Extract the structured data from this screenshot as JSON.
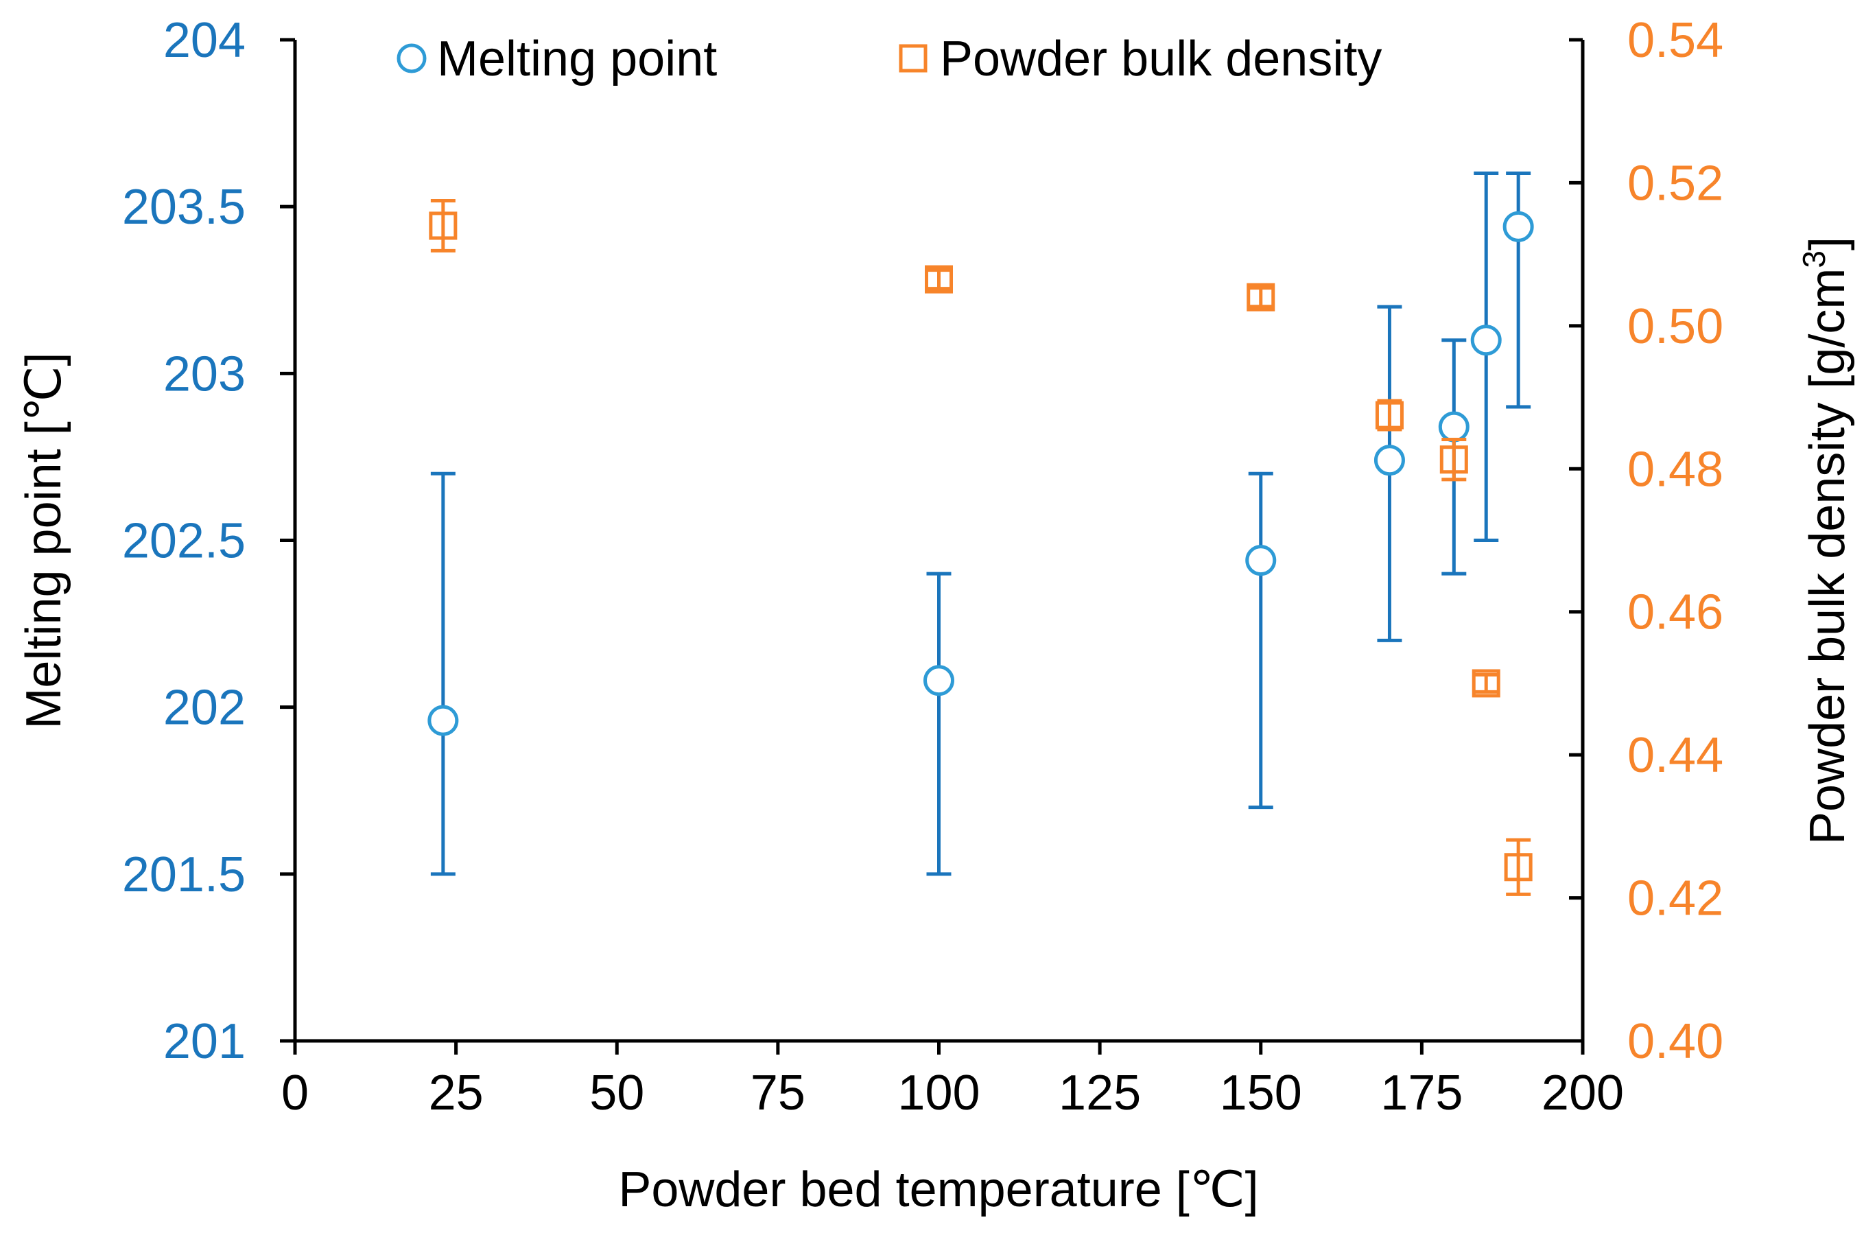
{
  "chart_data": {
    "type": "scatter",
    "title": "",
    "xlabel": "Powder bed temperature [℃]",
    "ylabel_left": "Melting point [℃]",
    "ylabel_right": "Powder bulk density [g/cm",
    "ylabel_right_sup": "3",
    "ylabel_right_end": "]",
    "xlim": [
      0,
      200
    ],
    "ylim_left": [
      201,
      204
    ],
    "ylim_right": [
      0.4,
      0.54
    ],
    "x_ticks": [
      0,
      25,
      50,
      75,
      100,
      125,
      150,
      175,
      200
    ],
    "x_tick_labels": [
      "0",
      "25",
      "50",
      "75",
      "100",
      "125",
      "150",
      "175",
      "200"
    ],
    "y_left_ticks": [
      201,
      201.5,
      202,
      202.5,
      203,
      203.5,
      204
    ],
    "y_left_tick_labels": [
      "201",
      "201.5",
      "202",
      "202.5",
      "203",
      "203.5",
      "204"
    ],
    "y_right_ticks": [
      0.4,
      0.42,
      0.44,
      0.46,
      0.48,
      0.5,
      0.52,
      0.54
    ],
    "y_right_tick_labels": [
      "0.40",
      "0.42",
      "0.44",
      "0.46",
      "0.48",
      "0.50",
      "0.52",
      "0.54"
    ],
    "grid": false,
    "legend_position": "top",
    "colors": {
      "melting": "#1A75BC",
      "melting_marker": "#2E9BD6",
      "density": "#F7842A",
      "axis": "#000000"
    },
    "series": [
      {
        "name": "Melting point",
        "axis": "left",
        "marker": "circle",
        "x": [
          23,
          100,
          150,
          170,
          180,
          185,
          190
        ],
        "values": [
          201.96,
          202.08,
          202.44,
          202.74,
          202.84,
          203.1,
          203.44
        ],
        "err_low": [
          201.5,
          201.5,
          201.7,
          202.2,
          202.4,
          202.5,
          202.9
        ],
        "err_high": [
          202.7,
          202.4,
          202.7,
          203.2,
          203.1,
          203.6,
          203.6
        ]
      },
      {
        "name": "Powder bulk density",
        "axis": "right",
        "marker": "square",
        "x": [
          23,
          100,
          150,
          170,
          180,
          185,
          190
        ],
        "values": [
          0.514,
          0.5065,
          0.504,
          0.4875,
          0.4813,
          0.45,
          0.4243
        ],
        "err_low": [
          0.5105,
          0.5052,
          0.5027,
          0.4855,
          0.4785,
          0.4488,
          0.4205
        ],
        "err_high": [
          0.5175,
          0.5078,
          0.5053,
          0.4895,
          0.4841,
          0.4512,
          0.4281
        ]
      }
    ]
  }
}
